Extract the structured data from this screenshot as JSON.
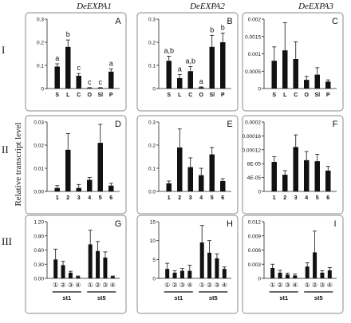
{
  "column_headers": [
    "DeEXPA1",
    "DeEXPA2",
    "DeEXPA3"
  ],
  "row_labels": [
    "I",
    "II",
    "III"
  ],
  "y_axis_label": "Relative transcript level",
  "chart_data": [
    {
      "id": "A",
      "type": "bar",
      "panel_letter": "A",
      "categories": [
        "S",
        "L",
        "C",
        "O",
        "Sl",
        "P"
      ],
      "values": [
        0.095,
        0.18,
        0.055,
        0.003,
        0.003,
        0.073
      ],
      "errors": [
        0.012,
        0.03,
        0.01,
        0.001,
        0.001,
        0.012
      ],
      "significance": [
        "a",
        "b",
        "c",
        "c",
        "c",
        "a"
      ],
      "ylim": [
        0,
        0.3
      ],
      "yticks": [
        "0",
        "0.1",
        "0.2",
        "0.3"
      ],
      "ytick_values": [
        0,
        0.1,
        0.2,
        0.3
      ]
    },
    {
      "id": "B",
      "type": "bar",
      "panel_letter": "B",
      "categories": [
        "S",
        "L",
        "C",
        "O",
        "Sl",
        "P"
      ],
      "values": [
        0.12,
        0.045,
        0.075,
        0.005,
        0.18,
        0.2
      ],
      "errors": [
        0.02,
        0.015,
        0.02,
        0.002,
        0.05,
        0.04
      ],
      "significance": [
        "a,b",
        "a",
        "a,b",
        "a",
        "b",
        "b"
      ],
      "ylim": [
        0,
        0.3
      ],
      "yticks": [
        "0",
        "0.1",
        "0.2",
        "0.3"
      ],
      "ytick_values": [
        0,
        0.1,
        0.2,
        0.3
      ]
    },
    {
      "id": "C",
      "type": "bar",
      "panel_letter": "C",
      "categories": [
        "S",
        "L",
        "C",
        "O",
        "Sl",
        "P"
      ],
      "values": [
        0.0008,
        0.0011,
        0.00085,
        0.00025,
        0.0004,
        0.0002
      ],
      "errors": [
        0.0004,
        0.0008,
        0.0005,
        0.0001,
        0.0002,
        5e-05
      ],
      "significance": [],
      "ylim": [
        0,
        0.002
      ],
      "yticks": [
        "0",
        "0.0005",
        "0.001",
        "0.0015",
        "0.002"
      ],
      "ytick_values": [
        0,
        0.0005,
        0.001,
        0.0015,
        0.002
      ]
    },
    {
      "id": "D",
      "type": "bar",
      "panel_letter": "D",
      "categories": [
        "1",
        "2",
        "3",
        "4",
        "5",
        "6"
      ],
      "values": [
        0.0015,
        0.018,
        0.0015,
        0.005,
        0.021,
        0.0025
      ],
      "errors": [
        0.001,
        0.007,
        0.0015,
        0.001,
        0.008,
        0.001
      ],
      "significance": [],
      "ylim": [
        0,
        0.03
      ],
      "yticks": [
        "0.00",
        "0.01",
        "0.02",
        "0.03"
      ],
      "ytick_values": [
        0,
        0.01,
        0.02,
        0.03
      ]
    },
    {
      "id": "E",
      "type": "bar",
      "panel_letter": "E",
      "categories": [
        "1",
        "2",
        "3",
        "4",
        "5",
        "6"
      ],
      "values": [
        0.035,
        0.19,
        0.105,
        0.07,
        0.16,
        0.045
      ],
      "errors": [
        0.01,
        0.08,
        0.04,
        0.03,
        0.03,
        0.01
      ],
      "significance": [],
      "ylim": [
        0,
        0.3
      ],
      "yticks": [
        "0.0",
        "0.1",
        "0.2",
        "0.3"
      ],
      "ytick_values": [
        0,
        0.1,
        0.2,
        0.3
      ]
    },
    {
      "id": "F",
      "type": "bar",
      "panel_letter": "F",
      "categories": [
        "1",
        "2",
        "3",
        "4",
        "5",
        "6"
      ],
      "values": [
        8.5e-05,
        4.8e-05,
        0.000128,
        9e-05,
        8.7e-05,
        6e-05
      ],
      "errors": [
        1.5e-05,
        1.2e-05,
        3.5e-05,
        2.5e-05,
        2e-05,
        1.2e-05
      ],
      "significance": [],
      "ylim": [
        0,
        0.0002
      ],
      "yticks": [
        "0",
        "4E-05",
        "8E-05",
        "0.00012",
        "0.00016",
        "0.0002"
      ],
      "ytick_values": [
        0,
        4e-05,
        8e-05,
        0.00012,
        0.00016,
        0.0002
      ]
    },
    {
      "id": "G",
      "type": "bar",
      "panel_letter": "G",
      "categories": [
        "①",
        "②",
        "③",
        "④",
        "①",
        "②",
        "③",
        "④"
      ],
      "groups": [
        "st1",
        "st5"
      ],
      "values": [
        0.4,
        0.28,
        0.12,
        0.04,
        0.72,
        0.58,
        0.44,
        0.04
      ],
      "errors": [
        0.22,
        0.08,
        0.03,
        0.01,
        0.3,
        0.2,
        0.12,
        0.01
      ],
      "significance": [],
      "ylim": [
        0,
        1.2
      ],
      "yticks": [
        "0.00",
        "0.30",
        "0.60",
        "0.90",
        "1.20"
      ],
      "ytick_values": [
        0,
        0.3,
        0.6,
        0.9,
        1.2
      ]
    },
    {
      "id": "H",
      "type": "bar",
      "panel_letter": "H",
      "categories": [
        "①",
        "②",
        "③",
        "④",
        "①",
        "②",
        "③",
        "④"
      ],
      "groups": [
        "st1",
        "st5"
      ],
      "values": [
        2.5,
        1.5,
        2.0,
        2.0,
        9.5,
        6.8,
        5.3,
        2.5
      ],
      "errors": [
        1.5,
        0.5,
        0.6,
        1.5,
        4.5,
        3.2,
        1.2,
        0.5
      ],
      "significance": [],
      "ylim": [
        0,
        15
      ],
      "yticks": [
        "0",
        "5",
        "10",
        "15"
      ],
      "ytick_values": [
        0,
        5,
        10,
        15
      ]
    },
    {
      "id": "I",
      "type": "bar",
      "panel_letter": "I",
      "categories": [
        "①",
        "②",
        "③",
        "④",
        "①",
        "②",
        "③",
        "④"
      ],
      "groups": [
        "st1",
        "st5"
      ],
      "values": [
        0.0022,
        0.0012,
        0.0008,
        0.0006,
        0.0025,
        0.0055,
        0.0012,
        0.0017
      ],
      "errors": [
        0.0008,
        0.0005,
        0.0003,
        0.0003,
        0.0008,
        0.0045,
        0.0004,
        0.0006
      ],
      "significance": [],
      "ylim": [
        0,
        0.012
      ],
      "yticks": [
        "0",
        "0.003",
        "0.006",
        "0.009",
        "0.012"
      ],
      "ytick_values": [
        0,
        0.003,
        0.006,
        0.009,
        0.012
      ]
    }
  ]
}
